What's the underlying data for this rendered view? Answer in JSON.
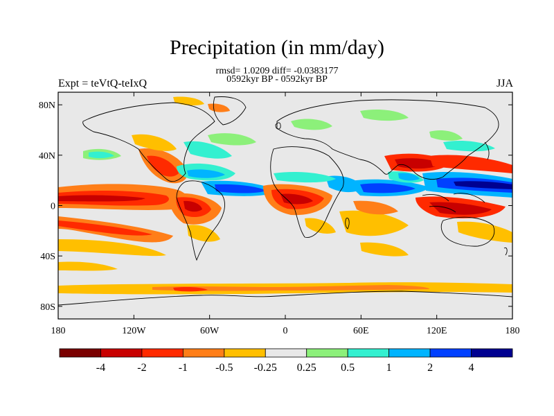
{
  "header": {
    "title": "Precipitation (in mm/day)",
    "subtitle_stats": "rmsd= 1.0209 diff= -0.0383177",
    "subtitle_period": "0592kyr BP - 0592kyr BP",
    "left_label": "Expt = teVtQ-teIxQ",
    "right_label": "JJA"
  },
  "map": {
    "lon_ticks": [
      "180",
      "120W",
      "60W",
      "0",
      "60E",
      "120E",
      "180"
    ],
    "lat_ticks": [
      "80N",
      "40N",
      "0",
      "40S",
      "80S"
    ],
    "background": "#e8e8e8"
  },
  "colorbar": {
    "colors": [
      "#7a0000",
      "#c80000",
      "#ff2a00",
      "#ff7e18",
      "#ffbf00",
      "#e8e8e8",
      "#8cf07a",
      "#33f0d0",
      "#00b4ff",
      "#0040ff",
      "#000090"
    ],
    "labels": [
      "-4",
      "-2",
      "-1",
      "-0.5",
      "-0.25",
      "0.25",
      "0.5",
      "1",
      "2",
      "4"
    ]
  }
}
